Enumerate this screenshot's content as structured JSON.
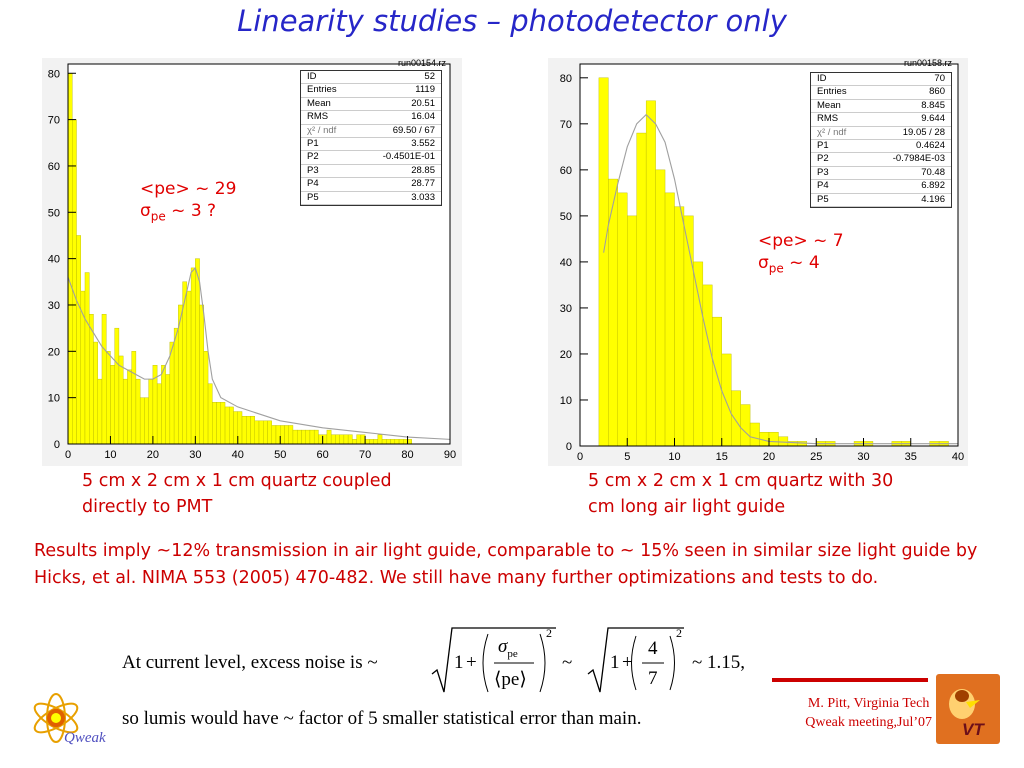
{
  "title": "Linearity studies – photodetector only",
  "left_panel": {
    "run": "run00154.rz",
    "stats": [
      {
        "k": "ID",
        "v": "52"
      },
      {
        "k": "Entries",
        "v": "1119"
      },
      {
        "k": "Mean",
        "v": "20.51"
      },
      {
        "k": "RMS",
        "v": "16.04"
      },
      {
        "k": "χ² / ndf",
        "v": "69.50  /  67"
      },
      {
        "k": "P1",
        "v": "3.552"
      },
      {
        "k": "P2",
        "v": "-0.4501E-01"
      },
      {
        "k": "P3",
        "v": "28.85"
      },
      {
        "k": "P4",
        "v": "28.77"
      },
      {
        "k": "P5",
        "v": "3.033"
      }
    ],
    "annot_line1": "<pe> ~ 29",
    "annot_sigma": "σ",
    "annot_sub": "pe",
    "annot_rest": " ~ 3 ?",
    "caption_line1": "5 cm x 2 cm x 1 cm quartz coupled",
    "caption_line2": "directly to PMT"
  },
  "right_panel": {
    "run": "run00158.rz",
    "stats": [
      {
        "k": "ID",
        "v": "70"
      },
      {
        "k": "Entries",
        "v": "860"
      },
      {
        "k": "Mean",
        "v": "8.845"
      },
      {
        "k": "RMS",
        "v": "9.644"
      },
      {
        "k": "χ² / ndf",
        "v": "19.05  /  28"
      },
      {
        "k": "P1",
        "v": "0.4624"
      },
      {
        "k": "P2",
        "v": "-0.7984E-03"
      },
      {
        "k": "P3",
        "v": "70.48"
      },
      {
        "k": "P4",
        "v": "6.892"
      },
      {
        "k": "P5",
        "v": "4.196"
      }
    ],
    "annot_line1": "<pe> ~ 7",
    "annot_sigma": "σ",
    "annot_sub": "pe",
    "annot_rest": " ~ 4",
    "caption_line1": "5 cm x 2 cm x 1 cm quartz with 30",
    "caption_line2": "cm long air light guide"
  },
  "results_text": "Results imply ~12%  transmission in air light guide, comparable to ~ 15% seen in similar size light guide by Hicks, et al.  NIMA 553 (2005) 470-482.  We still have many further optimizations and tests to do.",
  "formula": {
    "lead": "At current level, excess noise is ~",
    "one": "1",
    "plus": "+",
    "sigma": "σ",
    "sigma_sub": "pe",
    "pe_bracket": "⟨pe⟩",
    "exp": "2",
    "tilde": "~",
    "num": "4",
    "den": "7",
    "result": "~ 1.15,",
    "line2": "so lumis would have  ~ factor of 5 smaller statistical error than main."
  },
  "footer": {
    "line1": "M. Pitt, Virginia Tech",
    "line2": "Qweak meeting,Jul’07"
  },
  "logos": {
    "left": "Qweak",
    "right": "VT"
  },
  "colors": {
    "title": "#2626c8",
    "red": "#cc0000",
    "bar": "#ffff00",
    "bar_edge": "#b8b800",
    "fit": "#a0a0a0",
    "panel_bg": "#f2f2f2"
  },
  "chart_data": [
    {
      "type": "bar",
      "bin_width": 1,
      "xlim": [
        0,
        90
      ],
      "ylim": [
        0,
        82
      ],
      "xticks": [
        0,
        10,
        20,
        30,
        40,
        50,
        60,
        70,
        80,
        90
      ],
      "yticks": [
        0,
        10,
        20,
        30,
        40,
        50,
        60,
        70,
        80
      ],
      "values": [
        80,
        70,
        45,
        33,
        37,
        28,
        22,
        14,
        28,
        20,
        17,
        25,
        19,
        14,
        16,
        20,
        14,
        10,
        10,
        14,
        17,
        13,
        17,
        15,
        22,
        25,
        30,
        35,
        33,
        38,
        40,
        30,
        20,
        13,
        9,
        9,
        9,
        8,
        8,
        7,
        7,
        6,
        6,
        6,
        5,
        5,
        5,
        5,
        4,
        4,
        4,
        4,
        4,
        3,
        3,
        3,
        3,
        3,
        3,
        2,
        2,
        3,
        2,
        2,
        2,
        2,
        2,
        1,
        2,
        2,
        1,
        1,
        1,
        2,
        1,
        1,
        1,
        1,
        1,
        1,
        1,
        0,
        0,
        0,
        0,
        0,
        0,
        0,
        0,
        0
      ],
      "fit": [
        [
          0,
          36
        ],
        [
          2,
          31
        ],
        [
          4,
          27
        ],
        [
          6,
          24
        ],
        [
          8,
          21
        ],
        [
          10,
          19
        ],
        [
          12,
          17
        ],
        [
          14,
          16
        ],
        [
          16,
          15
        ],
        [
          18,
          14
        ],
        [
          20,
          14
        ],
        [
          22,
          15
        ],
        [
          24,
          19
        ],
        [
          26,
          25
        ],
        [
          28,
          33
        ],
        [
          29,
          37
        ],
        [
          30,
          38
        ],
        [
          31,
          35
        ],
        [
          32,
          28
        ],
        [
          33,
          20
        ],
        [
          34,
          14
        ],
        [
          36,
          10
        ],
        [
          40,
          8
        ],
        [
          50,
          5
        ],
        [
          60,
          3.5
        ],
        [
          70,
          2.5
        ],
        [
          80,
          1.5
        ],
        [
          90,
          1
        ]
      ]
    },
    {
      "type": "bar",
      "bin_width": 1,
      "xlim": [
        0,
        40
      ],
      "ylim": [
        0,
        83
      ],
      "xticks": [
        0,
        5,
        10,
        15,
        20,
        25,
        30,
        35,
        40
      ],
      "yticks": [
        0,
        10,
        20,
        30,
        40,
        50,
        60,
        70,
        80
      ],
      "values": [
        0,
        0,
        80,
        58,
        55,
        50,
        68,
        75,
        60,
        55,
        52,
        50,
        40,
        35,
        28,
        20,
        12,
        9,
        5,
        3,
        3,
        2,
        1,
        1,
        0,
        1,
        1,
        0,
        0,
        1,
        1,
        0,
        0,
        1,
        1,
        0,
        0,
        1,
        1,
        0
      ],
      "fit": [
        [
          2.5,
          42
        ],
        [
          3,
          48
        ],
        [
          4,
          57
        ],
        [
          5,
          65
        ],
        [
          6,
          70
        ],
        [
          7,
          72
        ],
        [
          8,
          70
        ],
        [
          9,
          66
        ],
        [
          10,
          58
        ],
        [
          11,
          48
        ],
        [
          12,
          38
        ],
        [
          13,
          28
        ],
        [
          14,
          19
        ],
        [
          15,
          12
        ],
        [
          16,
          7
        ],
        [
          17,
          4
        ],
        [
          18,
          2
        ],
        [
          20,
          1
        ],
        [
          25,
          0.5
        ],
        [
          30,
          0.5
        ],
        [
          40,
          0.5
        ]
      ]
    }
  ]
}
